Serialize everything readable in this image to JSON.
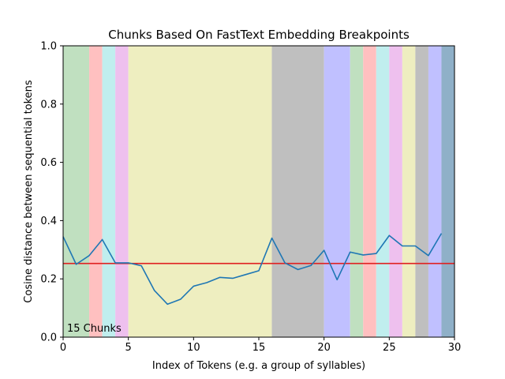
{
  "chart_data": {
    "type": "line",
    "title": "Chunks Based On FastText Embedding Breakpoints",
    "xlabel": "Index of Tokens (e.g. a group of syllables)",
    "ylabel": "Cosine distance between sequential tokens",
    "xlim": [
      0,
      30
    ],
    "ylim": [
      0,
      1.0
    ],
    "x_ticks": [
      "0",
      "5",
      "10",
      "15",
      "20",
      "25",
      "30"
    ],
    "y_ticks": [
      "0.0",
      "0.2",
      "0.4",
      "0.6",
      "0.8",
      "1.0"
    ],
    "grid": false,
    "annotation": "15 Chunks",
    "series": [
      {
        "color": "#1f77b4",
        "x": [
          0,
          1,
          2,
          3,
          4,
          5,
          6,
          7,
          8,
          9,
          10,
          11,
          12,
          13,
          14,
          15,
          16,
          17,
          18,
          19,
          20,
          21,
          22,
          23,
          24,
          25,
          26,
          27,
          28,
          29
        ],
        "values": [
          0.345,
          0.25,
          0.28,
          0.335,
          0.255,
          0.255,
          0.245,
          0.16,
          0.113,
          0.13,
          0.175,
          0.187,
          0.205,
          0.202,
          0.215,
          0.228,
          0.34,
          0.255,
          0.232,
          0.246,
          0.298,
          0.197,
          0.292,
          0.282,
          0.287,
          0.349,
          0.313,
          0.313,
          0.28,
          0.356
        ]
      }
    ],
    "threshold": {
      "y": 0.253,
      "color": "#e02020"
    },
    "chunks": [
      {
        "start": 0,
        "end": 2,
        "color": "#c0e0c0"
      },
      {
        "start": 2,
        "end": 3,
        "color": "#ffc0c0"
      },
      {
        "start": 3,
        "end": 4,
        "color": "#c0eeee"
      },
      {
        "start": 4,
        "end": 5,
        "color": "#eec0ee"
      },
      {
        "start": 5,
        "end": 16,
        "color": "#eeeec0"
      },
      {
        "start": 16,
        "end": 20,
        "color": "#bfbfbf"
      },
      {
        "start": 20,
        "end": 22,
        "color": "#c0c0ff"
      },
      {
        "start": 22,
        "end": 23,
        "color": "#c0e0c0"
      },
      {
        "start": 23,
        "end": 24,
        "color": "#ffc0c0"
      },
      {
        "start": 24,
        "end": 25,
        "color": "#c0eeee"
      },
      {
        "start": 25,
        "end": 26,
        "color": "#eec0ee"
      },
      {
        "start": 26,
        "end": 27,
        "color": "#eeeec0"
      },
      {
        "start": 27,
        "end": 28,
        "color": "#bfbfbf"
      },
      {
        "start": 28,
        "end": 29,
        "color": "#c0c0ff"
      },
      {
        "start": 29,
        "end": 30,
        "color": "#8fb0c8"
      }
    ]
  }
}
